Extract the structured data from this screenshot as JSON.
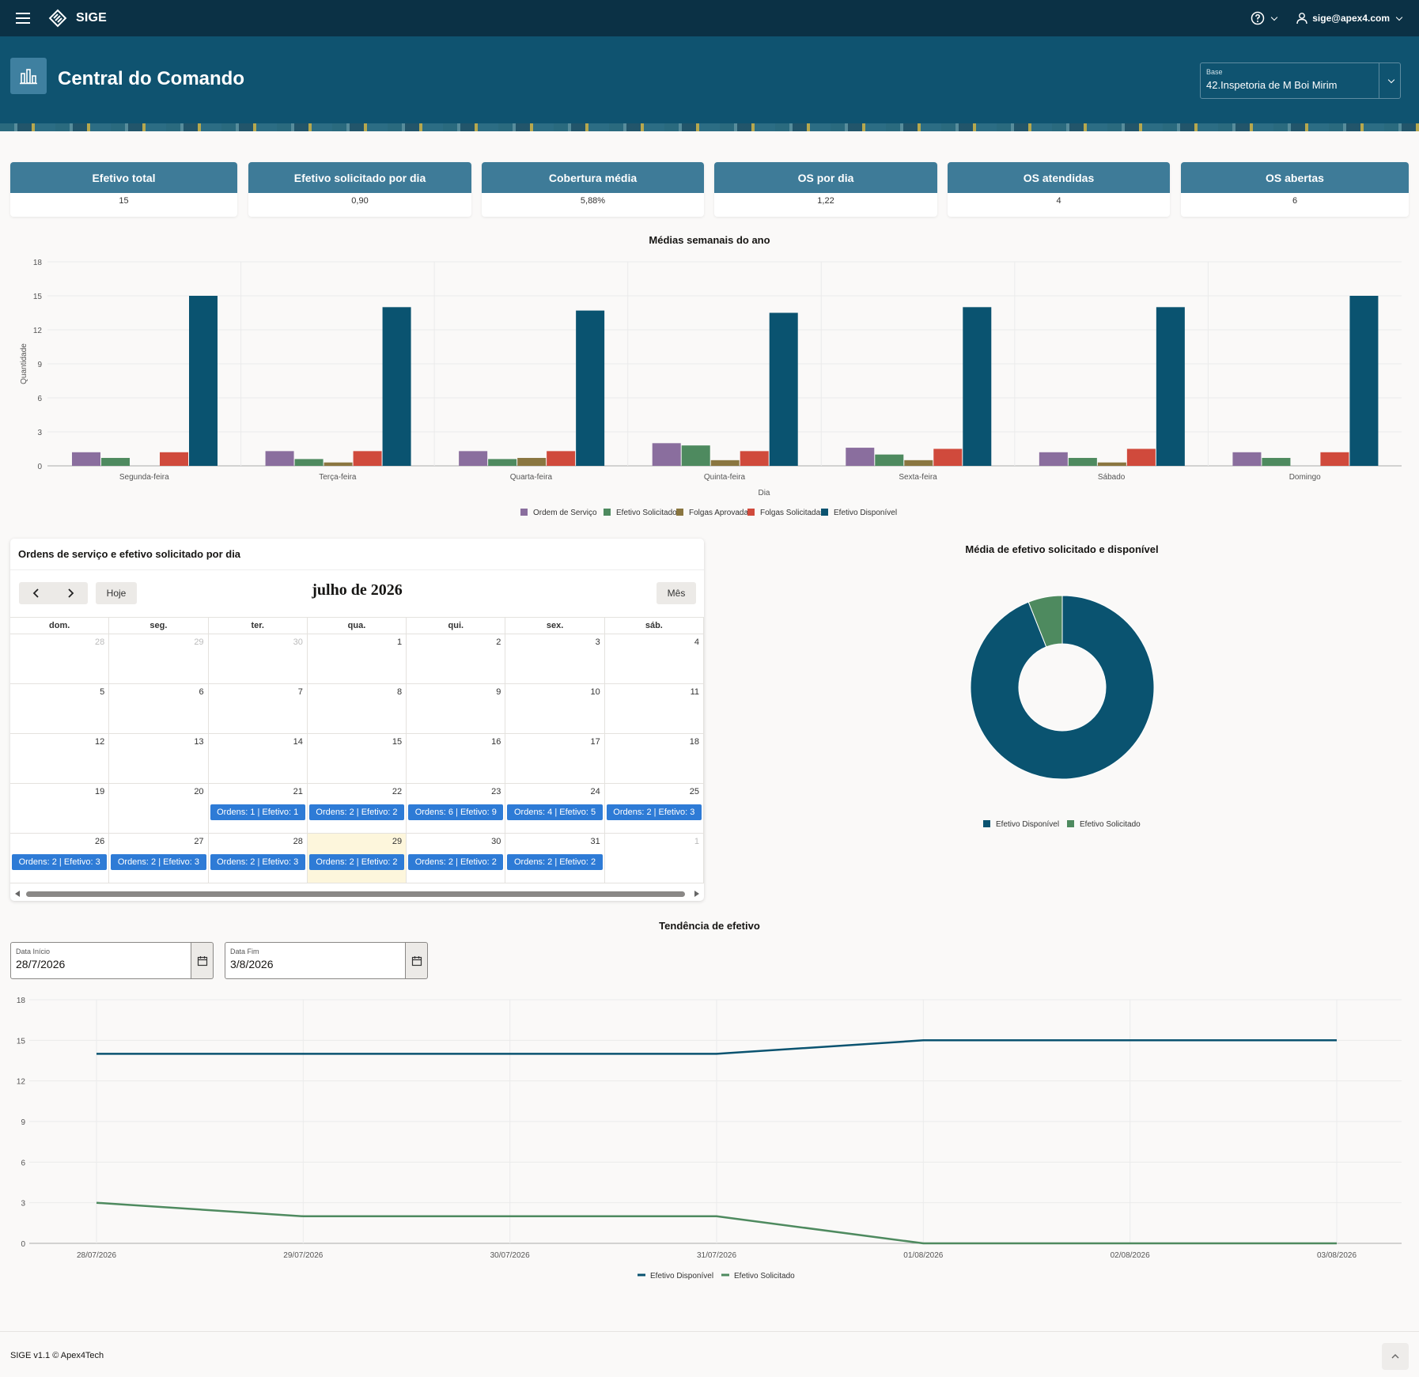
{
  "topbar": {
    "app_name": "SIGE",
    "help_icon": "help-icon",
    "user_email": "sige@apex4.com"
  },
  "header": {
    "title": "Central do Comando",
    "base_label": "Base",
    "base_value": "42.Inspetoria de M Boi Mirim"
  },
  "kpis": [
    {
      "label": "Efetivo total",
      "value": "15"
    },
    {
      "label": "Efetivo solicitado por dia",
      "value": "0,90"
    },
    {
      "label": "Cobertura média",
      "value": "5,88%"
    },
    {
      "label": "OS por dia",
      "value": "1,22"
    },
    {
      "label": "OS atendidas",
      "value": "4"
    },
    {
      "label": "OS abertas",
      "value": "6"
    }
  ],
  "colors": {
    "ordem": "#8a6e9e",
    "efetivo_solicitado": "#4e8a5f",
    "folgas_aprovadas": "#8a7640",
    "folgas_solicitadas": "#d04a3c",
    "efetivo_disponivel": "#0a5370",
    "event_blue": "#2e7bd6",
    "header_bg": "#0f5370",
    "topbar_bg": "#0b3145"
  },
  "chart_data": [
    {
      "type": "bar",
      "title": "Médias semanais do ano",
      "xlabel": "Dia",
      "ylabel": "Quantidade",
      "ylim": [
        0,
        18
      ],
      "yticks": [
        "0",
        "3",
        "6",
        "9",
        "12",
        "15",
        "18"
      ],
      "categories": [
        "Segunda-feira",
        "Terça-feira",
        "Quarta-feira",
        "Quinta-feira",
        "Sexta-feira",
        "Sábado",
        "Domingo"
      ],
      "legend_position": "bottom",
      "series": [
        {
          "name": "Ordem de Serviço",
          "values": [
            1.2,
            1.3,
            1.3,
            2.0,
            1.6,
            1.2,
            1.2
          ]
        },
        {
          "name": "Efetivo Solicitado",
          "values": [
            0.7,
            0.6,
            0.6,
            1.8,
            1.0,
            0.7,
            0.7
          ]
        },
        {
          "name": "Folgas Aprovadas",
          "values": [
            0,
            0.3,
            0.7,
            0.5,
            0.5,
            0.3,
            0
          ]
        },
        {
          "name": "Folgas Solicitadas",
          "values": [
            1.2,
            1.3,
            1.3,
            1.3,
            1.5,
            1.5,
            1.2
          ]
        },
        {
          "name": "Efetivo Disponível",
          "values": [
            15,
            14,
            13.7,
            13.5,
            14,
            14,
            15
          ]
        }
      ]
    },
    {
      "type": "pie",
      "title": "Média de efetivo solicitado e disponível",
      "legend_position": "bottom",
      "labels": [
        "Efetivo Disponível",
        "Efetivo Solicitado"
      ],
      "values": [
        14.1,
        0.9
      ]
    },
    {
      "type": "line",
      "title": "Tendência de efetivo",
      "ylim": [
        0,
        18
      ],
      "yticks": [
        "0",
        "3",
        "6",
        "9",
        "12",
        "15",
        "18"
      ],
      "x": [
        "28/07/2026",
        "29/07/2026",
        "30/07/2026",
        "31/07/2026",
        "01/08/2026",
        "02/08/2026",
        "03/08/2026"
      ],
      "legend_position": "bottom",
      "series": [
        {
          "name": "Efetivo Disponível",
          "values": [
            14,
            14,
            14,
            14,
            15,
            15,
            15
          ]
        },
        {
          "name": "Efetivo Solicitado",
          "values": [
            3,
            2,
            2,
            2,
            0,
            0,
            0
          ]
        }
      ]
    }
  ],
  "calendar": {
    "card_title": "Ordens de serviço e efetivo solicitado por dia",
    "month_title": "julho de 2026",
    "today_label": "Hoje",
    "view_label": "Mês",
    "weekdays": [
      "dom.",
      "seg.",
      "ter.",
      "qua.",
      "qui.",
      "sex.",
      "sáb."
    ],
    "weeks": [
      [
        {
          "day": "28",
          "other": true
        },
        {
          "day": "29",
          "other": true
        },
        {
          "day": "30",
          "other": true
        },
        {
          "day": "1"
        },
        {
          "day": "2"
        },
        {
          "day": "3"
        },
        {
          "day": "4"
        }
      ],
      [
        {
          "day": "5"
        },
        {
          "day": "6"
        },
        {
          "day": "7"
        },
        {
          "day": "8"
        },
        {
          "day": "9"
        },
        {
          "day": "10"
        },
        {
          "day": "11"
        }
      ],
      [
        {
          "day": "12"
        },
        {
          "day": "13"
        },
        {
          "day": "14"
        },
        {
          "day": "15"
        },
        {
          "day": "16"
        },
        {
          "day": "17"
        },
        {
          "day": "18"
        }
      ],
      [
        {
          "day": "19"
        },
        {
          "day": "20"
        },
        {
          "day": "21",
          "event": "Ordens: 1 | Efetivo: 1"
        },
        {
          "day": "22",
          "event": "Ordens: 2 | Efetivo: 2"
        },
        {
          "day": "23",
          "event": "Ordens: 6 | Efetivo: 9"
        },
        {
          "day": "24",
          "event": "Ordens: 4 | Efetivo: 5"
        },
        {
          "day": "25",
          "event": "Ordens: 2 | Efetivo: 3"
        }
      ],
      [
        {
          "day": "26",
          "event": "Ordens: 2 | Efetivo: 3"
        },
        {
          "day": "27",
          "event": "Ordens: 2 | Efetivo: 3"
        },
        {
          "day": "28",
          "event": "Ordens: 2 | Efetivo: 3"
        },
        {
          "day": "29",
          "event": "Ordens: 2 | Efetivo: 2",
          "today": true
        },
        {
          "day": "30",
          "event": "Ordens: 2 | Efetivo: 2"
        },
        {
          "day": "31",
          "event": "Ordens: 2 | Efetivo: 2"
        },
        {
          "day": "1",
          "other": true
        }
      ]
    ]
  },
  "trend": {
    "start_label": "Data Início",
    "start_value": "28/7/2026",
    "end_label": "Data Fim",
    "end_value": "3/8/2026"
  },
  "footer": {
    "text": "SIGE v1.1 © Apex4Tech"
  }
}
